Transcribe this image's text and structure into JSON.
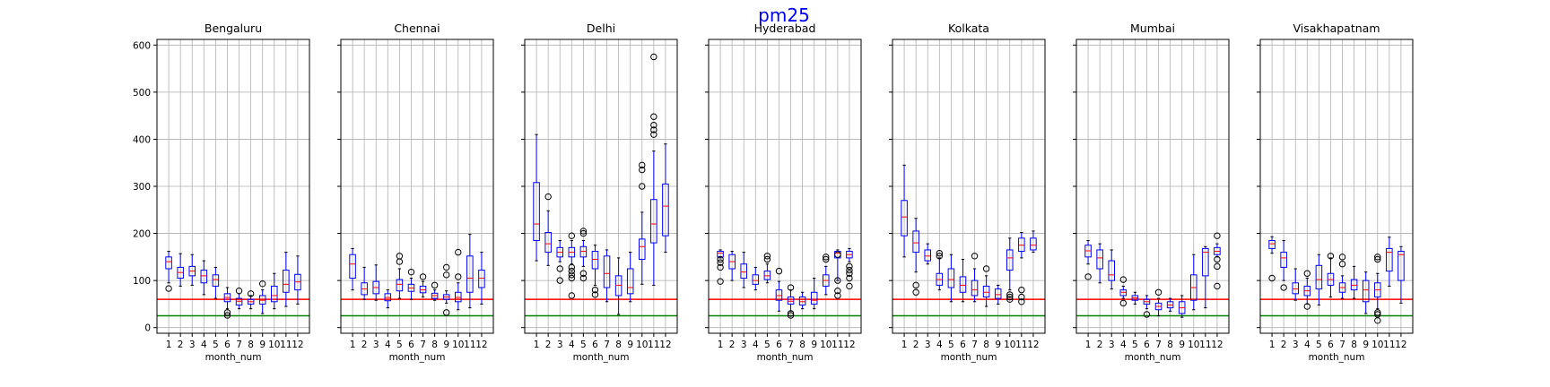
{
  "chart_data": {
    "type": "box",
    "title": "pm25",
    "xlabel": "month_num",
    "ylim": [
      -12,
      612
    ],
    "yticks": [
      0,
      100,
      200,
      300,
      400,
      500,
      600
    ],
    "xticks": [
      "1",
      "2",
      "3",
      "4",
      "5",
      "6",
      "7",
      "8",
      "9",
      "10",
      "11",
      "12"
    ],
    "grid": true,
    "reference_lines": [
      {
        "value": 60,
        "color": "#ff0000"
      },
      {
        "value": 25,
        "color": "#008000"
      }
    ],
    "colors": {
      "box": "#0000ff",
      "median": "#ff0000",
      "outlier": "#000000",
      "grid": "#b0b0b0"
    },
    "panels": [
      {
        "title": "Bengaluru",
        "boxes": [
          {
            "month": 1,
            "whislo": 95,
            "q1": 125,
            "med": 140,
            "q3": 150,
            "whishi": 162,
            "fliers": [
              83
            ]
          },
          {
            "month": 2,
            "whislo": 88,
            "q1": 105,
            "med": 117,
            "q3": 128,
            "whishi": 157,
            "fliers": []
          },
          {
            "month": 3,
            "whislo": 90,
            "q1": 110,
            "med": 120,
            "q3": 130,
            "whishi": 155,
            "fliers": []
          },
          {
            "month": 4,
            "whislo": 70,
            "q1": 95,
            "med": 110,
            "q3": 122,
            "whishi": 142,
            "fliers": []
          },
          {
            "month": 5,
            "whislo": 62,
            "q1": 88,
            "med": 102,
            "q3": 112,
            "whishi": 128,
            "fliers": []
          },
          {
            "month": 6,
            "whislo": 40,
            "q1": 55,
            "med": 64,
            "q3": 72,
            "whishi": 85,
            "fliers": [
              32,
              26
            ]
          },
          {
            "month": 7,
            "whislo": 40,
            "q1": 48,
            "med": 56,
            "q3": 62,
            "whishi": 72,
            "fliers": [
              78
            ]
          },
          {
            "month": 8,
            "whislo": 40,
            "q1": 50,
            "med": 55,
            "q3": 60,
            "whishi": 68,
            "fliers": [
              72
            ]
          },
          {
            "month": 9,
            "whislo": 30,
            "q1": 50,
            "med": 58,
            "q3": 68,
            "whishi": 80,
            "fliers": [
              93
            ]
          },
          {
            "month": 10,
            "whislo": 40,
            "q1": 55,
            "med": 68,
            "q3": 88,
            "whishi": 115,
            "fliers": []
          },
          {
            "month": 11,
            "whislo": 45,
            "q1": 75,
            "med": 92,
            "q3": 122,
            "whishi": 160,
            "fliers": []
          },
          {
            "month": 12,
            "whislo": 50,
            "q1": 80,
            "med": 97,
            "q3": 113,
            "whishi": 152,
            "fliers": []
          }
        ]
      },
      {
        "title": "Chennai",
        "boxes": [
          {
            "month": 1,
            "whislo": 80,
            "q1": 105,
            "med": 135,
            "q3": 155,
            "whishi": 168,
            "fliers": []
          },
          {
            "month": 2,
            "whislo": 60,
            "q1": 70,
            "med": 82,
            "q3": 95,
            "whishi": 128,
            "fliers": []
          },
          {
            "month": 3,
            "whislo": 58,
            "q1": 72,
            "med": 85,
            "q3": 98,
            "whishi": 133,
            "fliers": []
          },
          {
            "month": 4,
            "whislo": 42,
            "q1": 57,
            "med": 64,
            "q3": 72,
            "whishi": 80,
            "fliers": []
          },
          {
            "month": 5,
            "whislo": 62,
            "q1": 78,
            "med": 92,
            "q3": 102,
            "whishi": 125,
            "fliers": [
              140,
              152
            ]
          },
          {
            "month": 6,
            "whislo": 60,
            "q1": 77,
            "med": 84,
            "q3": 92,
            "whishi": 105,
            "fliers": [
              118
            ]
          },
          {
            "month": 7,
            "whislo": 65,
            "q1": 74,
            "med": 80,
            "q3": 88,
            "whishi": 98,
            "fliers": [
              108
            ]
          },
          {
            "month": 8,
            "whislo": 58,
            "q1": 62,
            "med": 68,
            "q3": 73,
            "whishi": 80,
            "fliers": [
              90
            ]
          },
          {
            "month": 9,
            "whislo": 52,
            "q1": 60,
            "med": 65,
            "q3": 70,
            "whishi": 78,
            "fliers": [
              32,
              112,
              128
            ]
          },
          {
            "month": 10,
            "whislo": 38,
            "q1": 55,
            "med": 64,
            "q3": 75,
            "whishi": 95,
            "fliers": [
              108,
              160
            ]
          },
          {
            "month": 11,
            "whislo": 42,
            "q1": 75,
            "med": 105,
            "q3": 152,
            "whishi": 198,
            "fliers": []
          },
          {
            "month": 12,
            "whislo": 50,
            "q1": 85,
            "med": 105,
            "q3": 122,
            "whishi": 160,
            "fliers": []
          }
        ]
      },
      {
        "title": "Delhi",
        "boxes": [
          {
            "month": 1,
            "whislo": 142,
            "q1": 185,
            "med": 220,
            "q3": 308,
            "whishi": 410,
            "fliers": []
          },
          {
            "month": 2,
            "whislo": 132,
            "q1": 160,
            "med": 178,
            "q3": 202,
            "whishi": 248,
            "fliers": [
              278
            ]
          },
          {
            "month": 3,
            "whislo": 140,
            "q1": 150,
            "med": 160,
            "q3": 170,
            "whishi": 185,
            "fliers": [
              100,
              125
            ]
          },
          {
            "month": 4,
            "whislo": 135,
            "q1": 150,
            "med": 160,
            "q3": 170,
            "whishi": 185,
            "fliers": [
              68,
              105,
              112,
              120,
              128,
              195
            ]
          },
          {
            "month": 5,
            "whislo": 130,
            "q1": 150,
            "med": 162,
            "q3": 172,
            "whishi": 185,
            "fliers": [
              105,
              115,
              200,
              205
            ]
          },
          {
            "month": 6,
            "whislo": 90,
            "q1": 125,
            "med": 145,
            "q3": 162,
            "whishi": 175,
            "fliers": [
              70,
              80
            ]
          },
          {
            "month": 7,
            "whislo": 55,
            "q1": 85,
            "med": 115,
            "q3": 152,
            "whishi": 165,
            "fliers": []
          },
          {
            "month": 8,
            "whislo": 28,
            "q1": 68,
            "med": 90,
            "q3": 110,
            "whishi": 148,
            "fliers": []
          },
          {
            "month": 9,
            "whislo": 55,
            "q1": 72,
            "med": 85,
            "q3": 125,
            "whishi": 160,
            "fliers": []
          },
          {
            "month": 10,
            "whislo": 92,
            "q1": 145,
            "med": 172,
            "q3": 188,
            "whishi": 245,
            "fliers": [
              300,
              335,
              345
            ]
          },
          {
            "month": 11,
            "whislo": 90,
            "q1": 180,
            "med": 220,
            "q3": 272,
            "whishi": 375,
            "fliers": [
              410,
              420,
              430,
              448,
              575
            ]
          },
          {
            "month": 12,
            "whislo": 160,
            "q1": 195,
            "med": 258,
            "q3": 305,
            "whishi": 390,
            "fliers": []
          }
        ]
      },
      {
        "title": "Hyderabad",
        "boxes": [
          {
            "month": 1,
            "whislo": 148,
            "q1": 150,
            "med": 158,
            "q3": 162,
            "whishi": 165,
            "fliers": [
              98,
              128,
              138,
              145
            ]
          },
          {
            "month": 2,
            "whislo": 100,
            "q1": 125,
            "med": 140,
            "q3": 155,
            "whishi": 162,
            "fliers": []
          },
          {
            "month": 3,
            "whislo": 85,
            "q1": 105,
            "med": 118,
            "q3": 135,
            "whishi": 160,
            "fliers": []
          },
          {
            "month": 4,
            "whislo": 80,
            "q1": 92,
            "med": 100,
            "q3": 112,
            "whishi": 128,
            "fliers": []
          },
          {
            "month": 5,
            "whislo": 95,
            "q1": 102,
            "med": 110,
            "q3": 120,
            "whishi": 135,
            "fliers": [
              145,
              152
            ]
          },
          {
            "month": 6,
            "whislo": 35,
            "q1": 58,
            "med": 68,
            "q3": 80,
            "whishi": 98,
            "fliers": [
              120
            ]
          },
          {
            "month": 7,
            "whislo": 35,
            "q1": 50,
            "med": 56,
            "q3": 65,
            "whishi": 80,
            "fliers": [
              26,
              30,
              85
            ]
          },
          {
            "month": 8,
            "whislo": 40,
            "q1": 48,
            "med": 55,
            "q3": 65,
            "whishi": 75,
            "fliers": []
          },
          {
            "month": 9,
            "whislo": 40,
            "q1": 50,
            "med": 58,
            "q3": 75,
            "whishi": 105,
            "fliers": []
          },
          {
            "month": 10,
            "whislo": 70,
            "q1": 88,
            "med": 100,
            "q3": 112,
            "whishi": 130,
            "fliers": [
              145,
              150
            ]
          },
          {
            "month": 11,
            "whislo": 100,
            "q1": 148,
            "med": 158,
            "q3": 162,
            "whishi": 165,
            "fliers": [
              68,
              78,
              100,
              155
            ]
          },
          {
            "month": 12,
            "whislo": 140,
            "q1": 148,
            "med": 155,
            "q3": 162,
            "whishi": 168,
            "fliers": [
              88,
              105,
              115,
              122,
              130
            ]
          }
        ]
      },
      {
        "title": "Kolkata",
        "boxes": [
          {
            "month": 1,
            "whislo": 150,
            "q1": 195,
            "med": 235,
            "q3": 270,
            "whishi": 345,
            "fliers": []
          },
          {
            "month": 2,
            "whislo": 118,
            "q1": 160,
            "med": 180,
            "q3": 205,
            "whishi": 232,
            "fliers": [
              75,
              90
            ]
          },
          {
            "month": 3,
            "whislo": 135,
            "q1": 142,
            "med": 152,
            "q3": 165,
            "whishi": 178,
            "fliers": []
          },
          {
            "month": 4,
            "whislo": 80,
            "q1": 90,
            "med": 102,
            "q3": 115,
            "whishi": 148,
            "fliers": [
              152,
              158
            ]
          },
          {
            "month": 5,
            "whislo": 55,
            "q1": 85,
            "med": 102,
            "q3": 125,
            "whishi": 155,
            "fliers": []
          },
          {
            "month": 6,
            "whislo": 55,
            "q1": 75,
            "med": 90,
            "q3": 108,
            "whishi": 145,
            "fliers": []
          },
          {
            "month": 7,
            "whislo": 55,
            "q1": 68,
            "med": 80,
            "q3": 100,
            "whishi": 125,
            "fliers": [
              152
            ]
          },
          {
            "month": 8,
            "whislo": 45,
            "q1": 65,
            "med": 75,
            "q3": 88,
            "whishi": 110,
            "fliers": [
              125
            ]
          },
          {
            "month": 9,
            "whislo": 50,
            "q1": 62,
            "med": 70,
            "q3": 82,
            "whishi": 90,
            "fliers": []
          },
          {
            "month": 10,
            "whislo": 80,
            "q1": 122,
            "med": 148,
            "q3": 165,
            "whishi": 190,
            "fliers": [
              60,
              65,
              70
            ]
          },
          {
            "month": 11,
            "whislo": 148,
            "q1": 162,
            "med": 175,
            "q3": 190,
            "whishi": 202,
            "fliers": [
              55,
              65,
              80
            ]
          },
          {
            "month": 12,
            "whislo": 160,
            "q1": 165,
            "med": 175,
            "q3": 190,
            "whishi": 205,
            "fliers": []
          }
        ]
      },
      {
        "title": "Mumbai",
        "boxes": [
          {
            "month": 1,
            "whislo": 135,
            "q1": 150,
            "med": 163,
            "q3": 175,
            "whishi": 185,
            "fliers": [
              108
            ]
          },
          {
            "month": 2,
            "whislo": 95,
            "q1": 125,
            "med": 148,
            "q3": 165,
            "whishi": 178,
            "fliers": []
          },
          {
            "month": 3,
            "whislo": 82,
            "q1": 100,
            "med": 112,
            "q3": 142,
            "whishi": 165,
            "fliers": []
          },
          {
            "month": 4,
            "whislo": 62,
            "q1": 68,
            "med": 75,
            "q3": 80,
            "whishi": 88,
            "fliers": [
              52,
              102
            ]
          },
          {
            "month": 5,
            "whislo": 50,
            "q1": 58,
            "med": 63,
            "q3": 68,
            "whishi": 75,
            "fliers": []
          },
          {
            "month": 6,
            "whislo": 40,
            "q1": 50,
            "med": 55,
            "q3": 60,
            "whishi": 68,
            "fliers": [
              28
            ]
          },
          {
            "month": 7,
            "whislo": 25,
            "q1": 38,
            "med": 45,
            "q3": 52,
            "whishi": 62,
            "fliers": [
              75
            ]
          },
          {
            "month": 8,
            "whislo": 35,
            "q1": 42,
            "med": 48,
            "q3": 55,
            "whishi": 62,
            "fliers": []
          },
          {
            "month": 9,
            "whislo": 22,
            "q1": 30,
            "med": 42,
            "q3": 55,
            "whishi": 68,
            "fliers": []
          },
          {
            "month": 10,
            "whislo": 38,
            "q1": 58,
            "med": 85,
            "q3": 112,
            "whishi": 155,
            "fliers": []
          },
          {
            "month": 11,
            "whislo": 42,
            "q1": 110,
            "med": 160,
            "q3": 168,
            "whishi": 172,
            "fliers": []
          },
          {
            "month": 12,
            "whislo": 150,
            "q1": 155,
            "med": 162,
            "q3": 170,
            "whishi": 178,
            "fliers": [
              88,
              130,
              145,
              195
            ]
          }
        ]
      },
      {
        "title": "Visakhapatnam",
        "boxes": [
          {
            "month": 1,
            "whislo": 158,
            "q1": 168,
            "med": 178,
            "q3": 185,
            "whishi": 193,
            "fliers": [
              105
            ]
          },
          {
            "month": 2,
            "whislo": 100,
            "q1": 128,
            "med": 148,
            "q3": 160,
            "whishi": 185,
            "fliers": [
              85
            ]
          },
          {
            "month": 3,
            "whislo": 58,
            "q1": 72,
            "med": 82,
            "q3": 95,
            "whishi": 125,
            "fliers": []
          },
          {
            "month": 4,
            "whislo": 50,
            "q1": 68,
            "med": 78,
            "q3": 88,
            "whishi": 105,
            "fliers": [
              45,
              115
            ]
          },
          {
            "month": 5,
            "whislo": 48,
            "q1": 82,
            "med": 102,
            "q3": 132,
            "whishi": 155,
            "fliers": []
          },
          {
            "month": 6,
            "whislo": 65,
            "q1": 90,
            "med": 102,
            "q3": 115,
            "whishi": 148,
            "fliers": [
              152
            ]
          },
          {
            "month": 7,
            "whislo": 62,
            "q1": 75,
            "med": 85,
            "q3": 95,
            "whishi": 110,
            "fliers": [
              135,
              150
            ]
          },
          {
            "month": 8,
            "whislo": 62,
            "q1": 80,
            "med": 90,
            "q3": 102,
            "whishi": 130,
            "fliers": []
          },
          {
            "month": 9,
            "whislo": 30,
            "q1": 55,
            "med": 80,
            "q3": 100,
            "whishi": 118,
            "fliers": []
          },
          {
            "month": 10,
            "whislo": 40,
            "q1": 65,
            "med": 80,
            "q3": 95,
            "whishi": 115,
            "fliers": [
              15,
              28,
              32,
              145,
              150
            ]
          },
          {
            "month": 11,
            "whislo": 88,
            "q1": 120,
            "med": 160,
            "q3": 168,
            "whishi": 192,
            "fliers": []
          },
          {
            "month": 12,
            "whislo": 52,
            "q1": 100,
            "med": 155,
            "q3": 162,
            "whishi": 172,
            "fliers": []
          }
        ]
      }
    ]
  }
}
